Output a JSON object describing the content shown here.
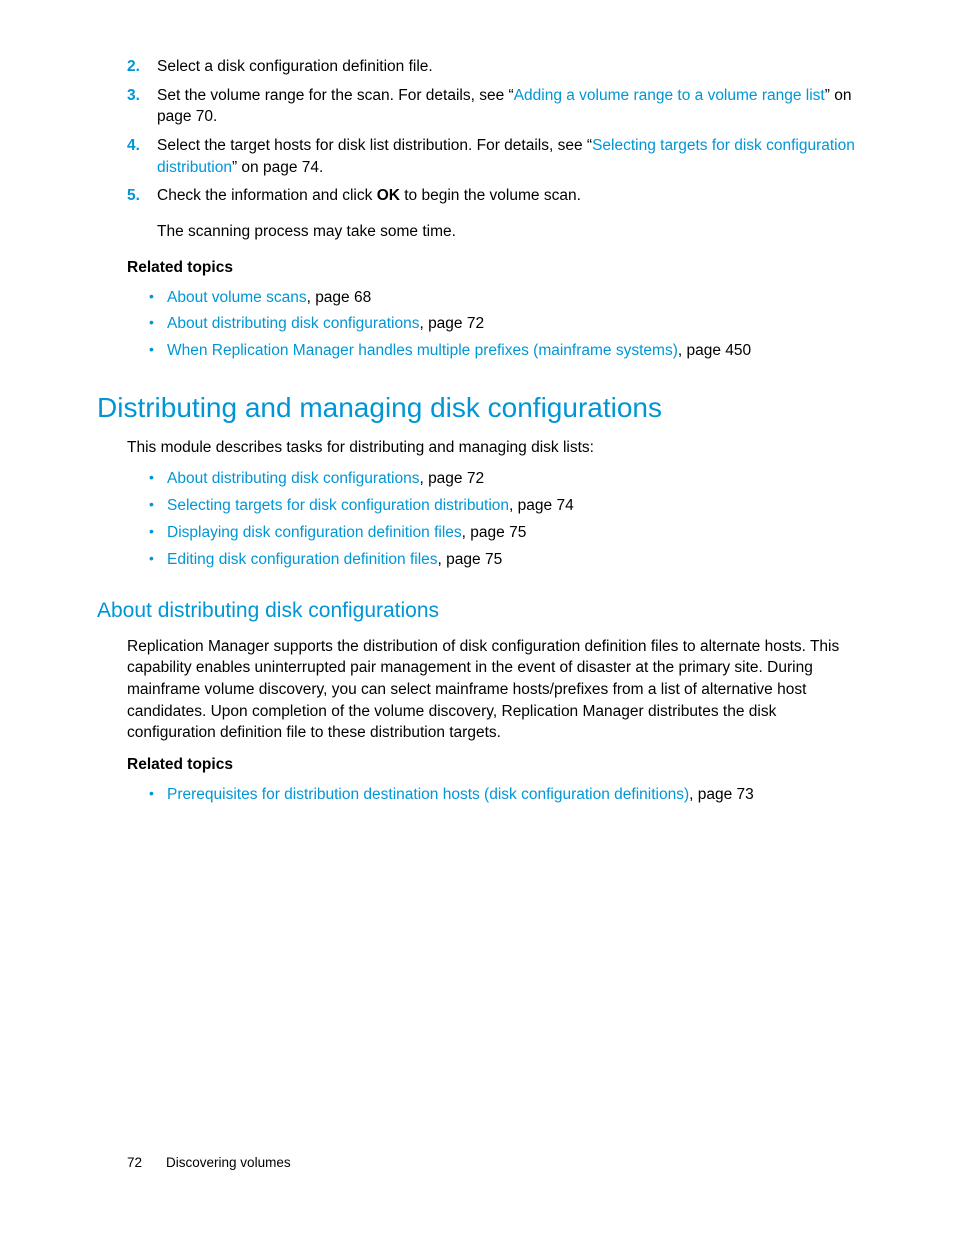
{
  "colors": {
    "accent": "#0096d6",
    "text": "#000000",
    "background": "#ffffff"
  },
  "steps": {
    "s2": {
      "num": "2.",
      "text": "Select a disk configuration definition file."
    },
    "s3": {
      "num": "3.",
      "prefix": "Set the volume range for the scan. For details, see “",
      "link": "Adding a volume range to a volume range list",
      "suffix": "” on page 70."
    },
    "s4": {
      "num": "4.",
      "prefix": "Select the target hosts for disk list distribution. For details, see “",
      "link": "Selecting targets for disk configuration distribution",
      "suffix": "” on page 74."
    },
    "s5": {
      "num": "5.",
      "prefix": "Check the information and click ",
      "bold": "OK",
      "suffix": " to begin the volume scan."
    },
    "note": "The scanning process may take some time."
  },
  "related1": {
    "label": "Related topics",
    "items": [
      {
        "link": "About volume scans",
        "suffix": ", page 68"
      },
      {
        "link": "About distributing disk configurations",
        "suffix": ", page 72"
      },
      {
        "link": "When Replication Manager handles multiple prefixes (mainframe systems)",
        "suffix": ", page 450"
      }
    ]
  },
  "section": {
    "title": "Distributing and managing disk configurations",
    "intro": "This module describes tasks for distributing and managing disk lists:",
    "items": [
      {
        "link": "About distributing disk configurations",
        "suffix": ", page 72"
      },
      {
        "link": "Selecting targets for disk configuration distribution",
        "suffix": ", page 74"
      },
      {
        "link": "Displaying disk configuration definition files",
        "suffix": ", page 75"
      },
      {
        "link": "Editing disk configuration definition files",
        "suffix": ", page 75"
      }
    ]
  },
  "subsection": {
    "title": "About distributing disk configurations",
    "body": "Replication Manager supports the distribution of disk configuration definition files to alternate hosts. This capability enables uninterrupted pair management in the event of disaster at the primary site. During mainframe volume discovery, you can select mainframe hosts/prefixes from a list of alternative host candidates. Upon completion of the volume discovery, Replication Manager distributes the disk configuration definition file to these distribution targets."
  },
  "related2": {
    "label": "Related topics",
    "items": [
      {
        "link": "Prerequisites for distribution destination hosts (disk configuration definitions)",
        "suffix": ", page 73"
      }
    ]
  },
  "footer": {
    "page": "72",
    "chapter": "Discovering volumes"
  }
}
